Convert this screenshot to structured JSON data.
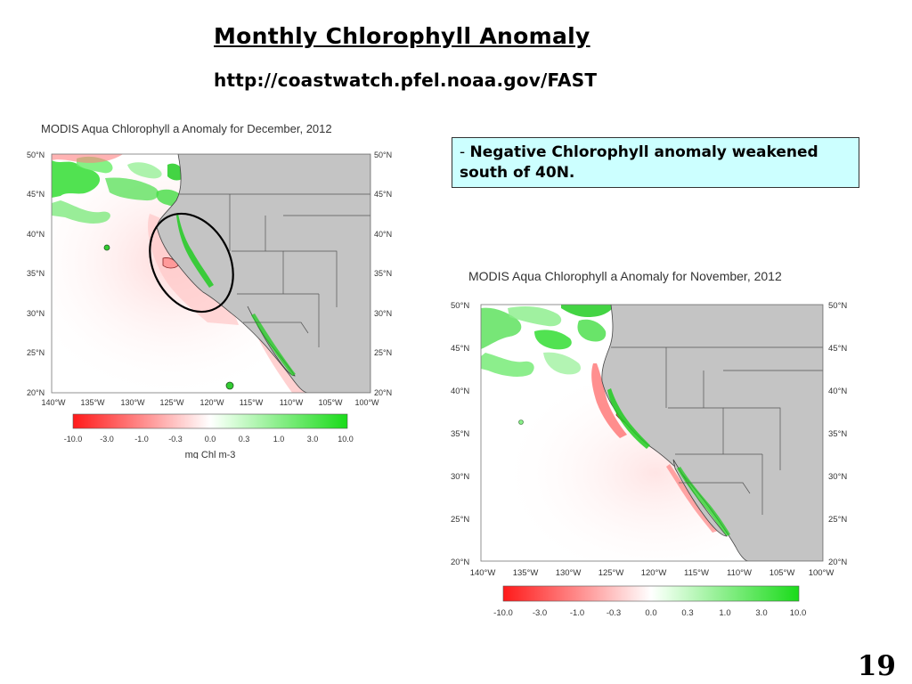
{
  "slide": {
    "title": "Monthly Chlorophyll Anomaly",
    "url": "http://coastwatch.pfel.noaa.gov/FAST",
    "note_dash": "- ",
    "note_text": "Negative Chlorophyll anomaly weakened south of 40N.",
    "page_number": "19"
  },
  "maps": [
    {
      "id": "december",
      "title": "MODIS Aqua Chlorophyll a Anomaly for December, 2012",
      "lat_labels": [
        "50°N",
        "45°N",
        "40°N",
        "35°N",
        "30°N",
        "25°N",
        "20°N"
      ],
      "lon_labels": [
        "140°W",
        "135°W",
        "130°W",
        "125°W",
        "120°W",
        "115°W",
        "110°W",
        "105°W",
        "100°W"
      ],
      "colorbar_ticks": [
        "-10.0",
        "-3.0",
        "-1.0",
        "-0.3",
        "0.0",
        "0.3",
        "1.0",
        "3.0",
        "10.0"
      ],
      "colorbar_unit": "mg Chl m-3",
      "has_highlight_ellipse": true
    },
    {
      "id": "november",
      "title": "MODIS Aqua Chlorophyll a Anomaly for November, 2012",
      "lat_labels": [
        "50°N",
        "45°N",
        "40°N",
        "35°N",
        "30°N",
        "25°N",
        "20°N"
      ],
      "lon_labels": [
        "140°W",
        "135°W",
        "130°W",
        "125°W",
        "120°W",
        "115°W",
        "110°W",
        "105°W",
        "100°W"
      ],
      "colorbar_ticks": [
        "-10.0",
        "-3.0",
        "-1.0",
        "-0.3",
        "0.0",
        "0.3",
        "1.0",
        "3.0",
        "10.0"
      ],
      "has_highlight_ellipse": false
    }
  ],
  "colors": {
    "land": "#c4c4c4",
    "negative_anomaly": "#ff3030",
    "positive_anomaly": "#22dd22",
    "note_background": "#ccffff"
  }
}
